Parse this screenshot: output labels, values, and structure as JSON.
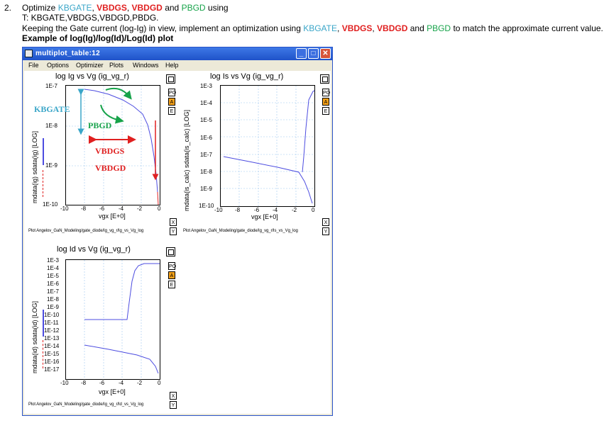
{
  "doc": {
    "item_number": "2.",
    "line1": [
      "Optimize ",
      "KBGATE",
      ", ",
      "VBDGS",
      ", ",
      "VBDGD",
      " and ",
      "PBGD",
      " using"
    ],
    "line2": "T: KBGATE,VBDGS,VBDGD,PBDG.",
    "line3": [
      "Keeping the Gate current (log-Ig) in view, implement an optimization using ",
      "KBGATE",
      ", ",
      "VBDGS",
      ", ",
      "VBDGD",
      " and ",
      "PBGD",
      " to match the approximate current value."
    ],
    "line4": "Example of log(Ig)/log(Id)/Log(Id) plot",
    "colors": {
      "kbgate": "#3aa6c8",
      "vbdg": "#e02020",
      "pbgd": "#17a34a"
    }
  },
  "window": {
    "title": "multiplot_table:12",
    "menu": [
      "File",
      "Options",
      "Optimizer",
      "Plots",
      "Windows",
      "Help"
    ]
  },
  "side_buttons": {
    "po": "PO",
    "a": "A",
    "e": "E",
    "x": "X",
    "y": "Y"
  },
  "plots": {
    "ig": {
      "title": "log Ig vs Vg (ig_vg_r)",
      "ylabel": "mdata(ig) sdata(ig) [LOG]",
      "xlabel": "vgx [E+0]",
      "footer": "Plot Angelov_GaN_Modeling/gate_diode/Ig_vg_r/Ig_vs_Vg_log",
      "yticks": [
        "1E-7",
        "1E-8",
        "1E-9",
        "1E-10"
      ],
      "xticks": [
        "-10",
        "-8",
        "-6",
        "-4",
        "-2",
        "0"
      ],
      "annotations": {
        "kbgate": "KBGATE",
        "pbgd": "PBGD",
        "vbdgs": "VBDGS",
        "vbdgd": "VBDGD"
      }
    },
    "is": {
      "title": "log Is vs Vg (ig_vg_r)",
      "ylabel": "mdata(is_calc) sdata(is_calc) [LOG]",
      "xlabel": "vgx [E+0]",
      "footer": "Plot Angelov_GaN_Modeling/gate_diode/Ig_vg_r/Is_vs_Vg_log",
      "yticks": [
        "1E-3",
        "1E-4",
        "1E-5",
        "1E-6",
        "1E-7",
        "1E-8",
        "1E-9",
        "1E-10"
      ],
      "xticks": [
        "-10",
        "-8",
        "-6",
        "-4",
        "-2",
        "0"
      ]
    },
    "id": {
      "title": "log Id vs Vg (ig_vg_r)",
      "ylabel": "mdata(id) sdata(id) [LOG]",
      "xlabel": "vgx [E+0]",
      "footer": "Plot Angelov_GaN_Modeling/gate_diode/Ig_vg_r/Id_vs_Vg_log",
      "yticks": [
        "1E-3",
        "1E-4",
        "1E-5",
        "1E-6",
        "1E-7",
        "1E-8",
        "1E-9",
        "1E-10",
        "1E-11",
        "1E-12",
        "1E-13",
        "1E-14",
        "1E-15",
        "1E-16",
        "1E-17"
      ],
      "xticks": [
        "-10",
        "-8",
        "-6",
        "-4",
        "-2",
        "0"
      ]
    }
  }
}
